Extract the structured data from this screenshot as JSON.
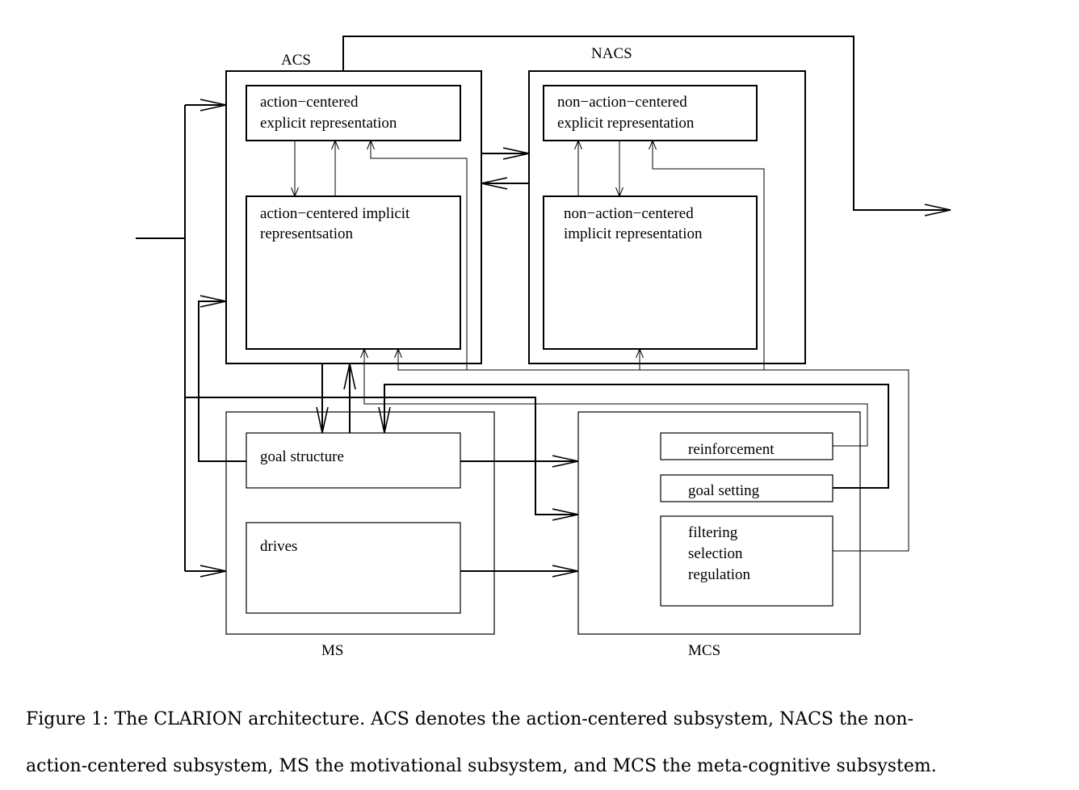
{
  "diagram": {
    "subsystems": {
      "acs": "ACS",
      "nacs": "NACS",
      "ms": "MS",
      "mcs": "MCS"
    },
    "boxes": {
      "acs_explicit": [
        "action−centered",
        "explicit representation"
      ],
      "acs_implicit": [
        "action−centered  implicit",
        "representsation"
      ],
      "nacs_explicit": [
        "non−action−centered",
        "explicit  representation"
      ],
      "nacs_implicit": [
        "non−action−centered",
        "implicit  representation"
      ],
      "goal_structure": "goal structure",
      "drives": "drives",
      "reinforcement": "reinforcement",
      "goal_setting": "goal setting",
      "filtering": [
        "filtering",
        "selection",
        "regulation"
      ]
    }
  },
  "caption": {
    "line1": "Figure 1: The CLARION architecture. ACS denotes the action-centered subsystem, NACS the non-",
    "line2": "action-centered subsystem, MS the motivational subsystem, and MCS the meta-cognitive subsystem."
  }
}
